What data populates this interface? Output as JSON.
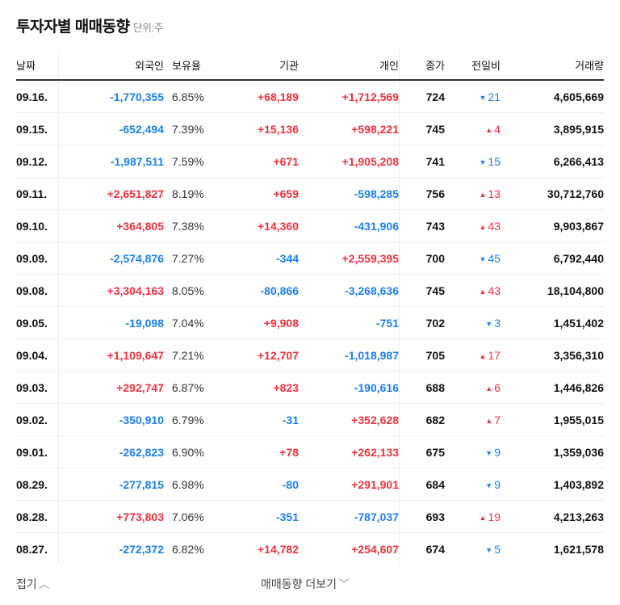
{
  "title": "투자자별 매매동향",
  "unit": "단위:주",
  "columns": [
    "날짜",
    "외국인",
    "보유율",
    "기관",
    "개인",
    "종가",
    "전일비",
    "거래량"
  ],
  "colors": {
    "up": "#f0303c",
    "down": "#1a7ff0"
  },
  "rows": [
    {
      "date": "09.16.",
      "foreign": "-1,770,355",
      "ratio": "6.85%",
      "inst": "+68,189",
      "indiv": "+1,712,569",
      "close": "724",
      "dir": "down",
      "change": "21",
      "volume": "4,605,669"
    },
    {
      "date": "09.15.",
      "foreign": "-652,494",
      "ratio": "7.39%",
      "inst": "+15,136",
      "indiv": "+598,221",
      "close": "745",
      "dir": "up",
      "change": "4",
      "volume": "3,895,915"
    },
    {
      "date": "09.12.",
      "foreign": "-1,987,511",
      "ratio": "7.59%",
      "inst": "+671",
      "indiv": "+1,905,208",
      "close": "741",
      "dir": "down",
      "change": "15",
      "volume": "6,266,413"
    },
    {
      "date": "09.11.",
      "foreign": "+2,651,827",
      "ratio": "8.19%",
      "inst": "+659",
      "indiv": "-598,285",
      "close": "756",
      "dir": "up",
      "change": "13",
      "volume": "30,712,760"
    },
    {
      "date": "09.10.",
      "foreign": "+364,805",
      "ratio": "7.38%",
      "inst": "+14,360",
      "indiv": "-431,906",
      "close": "743",
      "dir": "up",
      "change": "43",
      "volume": "9,903,867"
    },
    {
      "date": "09.09.",
      "foreign": "-2,574,876",
      "ratio": "7.27%",
      "inst": "-344",
      "indiv": "+2,559,395",
      "close": "700",
      "dir": "down",
      "change": "45",
      "volume": "6,792,440"
    },
    {
      "date": "09.08.",
      "foreign": "+3,304,163",
      "ratio": "8.05%",
      "inst": "-80,866",
      "indiv": "-3,268,636",
      "close": "745",
      "dir": "up",
      "change": "43",
      "volume": "18,104,800"
    },
    {
      "date": "09.05.",
      "foreign": "-19,098",
      "ratio": "7.04%",
      "inst": "+9,908",
      "indiv": "-751",
      "close": "702",
      "dir": "down",
      "change": "3",
      "volume": "1,451,402"
    },
    {
      "date": "09.04.",
      "foreign": "+1,109,647",
      "ratio": "7.21%",
      "inst": "+12,707",
      "indiv": "-1,018,987",
      "close": "705",
      "dir": "up",
      "change": "17",
      "volume": "3,356,310"
    },
    {
      "date": "09.03.",
      "foreign": "+292,747",
      "ratio": "6.87%",
      "inst": "+823",
      "indiv": "-190,616",
      "close": "688",
      "dir": "up",
      "change": "6",
      "volume": "1,446,826"
    },
    {
      "date": "09.02.",
      "foreign": "-350,910",
      "ratio": "6.79%",
      "inst": "-31",
      "indiv": "+352,628",
      "close": "682",
      "dir": "up",
      "change": "7",
      "volume": "1,955,015"
    },
    {
      "date": "09.01.",
      "foreign": "-262,823",
      "ratio": "6.90%",
      "inst": "+78",
      "indiv": "+262,133",
      "close": "675",
      "dir": "down",
      "change": "9",
      "volume": "1,359,036"
    },
    {
      "date": "08.29.",
      "foreign": "-277,815",
      "ratio": "6.98%",
      "inst": "-80",
      "indiv": "+291,901",
      "close": "684",
      "dir": "down",
      "change": "9",
      "volume": "1,403,892"
    },
    {
      "date": "08.28.",
      "foreign": "+773,803",
      "ratio": "7.06%",
      "inst": "-351",
      "indiv": "-787,037",
      "close": "693",
      "dir": "up",
      "change": "19",
      "volume": "4,213,263"
    },
    {
      "date": "08.27.",
      "foreign": "-272,372",
      "ratio": "6.82%",
      "inst": "+14,782",
      "indiv": "+254,607",
      "close": "674",
      "dir": "down",
      "change": "5",
      "volume": "1,621,578"
    }
  ],
  "footer": {
    "collapse": "접기",
    "more": "매매동향 더보기"
  }
}
